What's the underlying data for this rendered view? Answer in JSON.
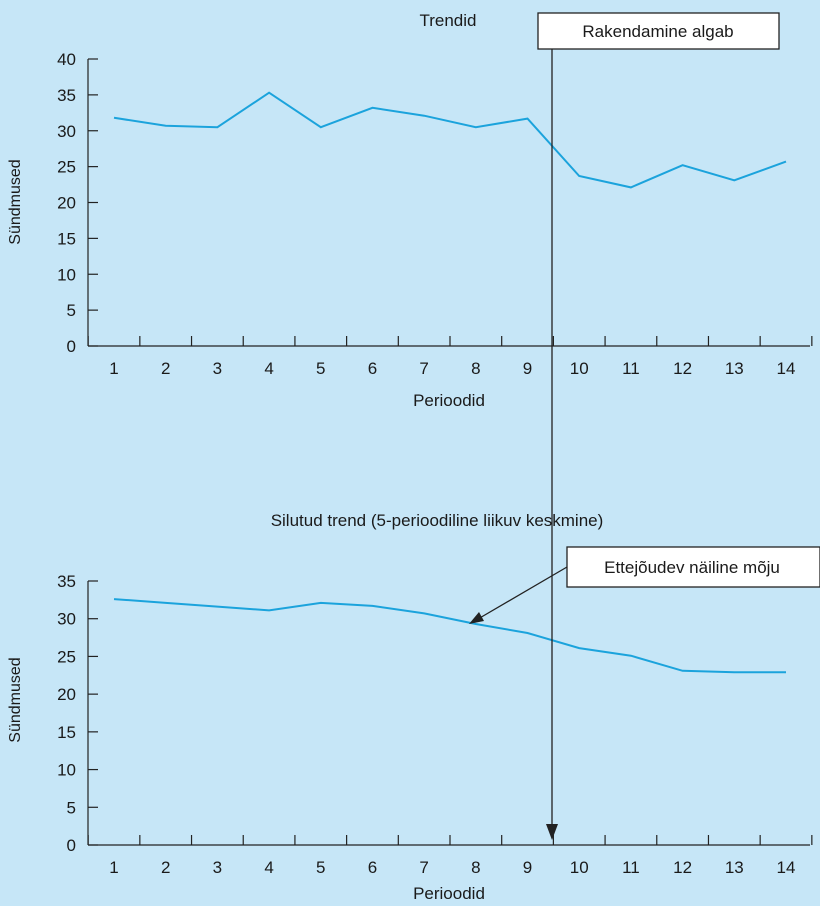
{
  "colors": {
    "background": "#c6e6f7",
    "series": "#1ba3dc",
    "axis": "#222222"
  },
  "chart_data": [
    {
      "type": "line",
      "title": "Trendid",
      "xlabel": "Perioodid",
      "ylabel": "Sündmused",
      "x": [
        1,
        2,
        3,
        4,
        5,
        6,
        7,
        8,
        9,
        10,
        11,
        12,
        13,
        14
      ],
      "ylim": [
        0,
        40
      ],
      "yticks": [
        0,
        5,
        10,
        15,
        20,
        25,
        30,
        35,
        40
      ],
      "series": [
        {
          "values": [
            31.8,
            30.7,
            30.5,
            35.3,
            30.5,
            33.2,
            32.1,
            30.5,
            31.7,
            23.7,
            22.1,
            25.2,
            23.1,
            25.7
          ]
        }
      ],
      "annotation": "Rakendamine algab",
      "intervention_at": 9.5
    },
    {
      "type": "line",
      "title": "Silutud trend (5-perioodiline liikuv keskmine)",
      "xlabel": "Perioodid",
      "ylabel": "Sündmused",
      "x": [
        1,
        2,
        3,
        4,
        5,
        6,
        7,
        8,
        9,
        10,
        11,
        12,
        13,
        14
      ],
      "ylim": [
        0,
        35
      ],
      "yticks": [
        0,
        5,
        10,
        15,
        20,
        25,
        30,
        35
      ],
      "series": [
        {
          "values": [
            32.6,
            32.1,
            31.6,
            31.1,
            32.1,
            31.7,
            30.7,
            29.3,
            28.1,
            26.1,
            25.1,
            23.1,
            22.9,
            22.9
          ]
        }
      ],
      "annotation": "Ettejõudev näiline mõju",
      "annotation_points_to_x": 8,
      "intervention_at": 9.5
    }
  ]
}
